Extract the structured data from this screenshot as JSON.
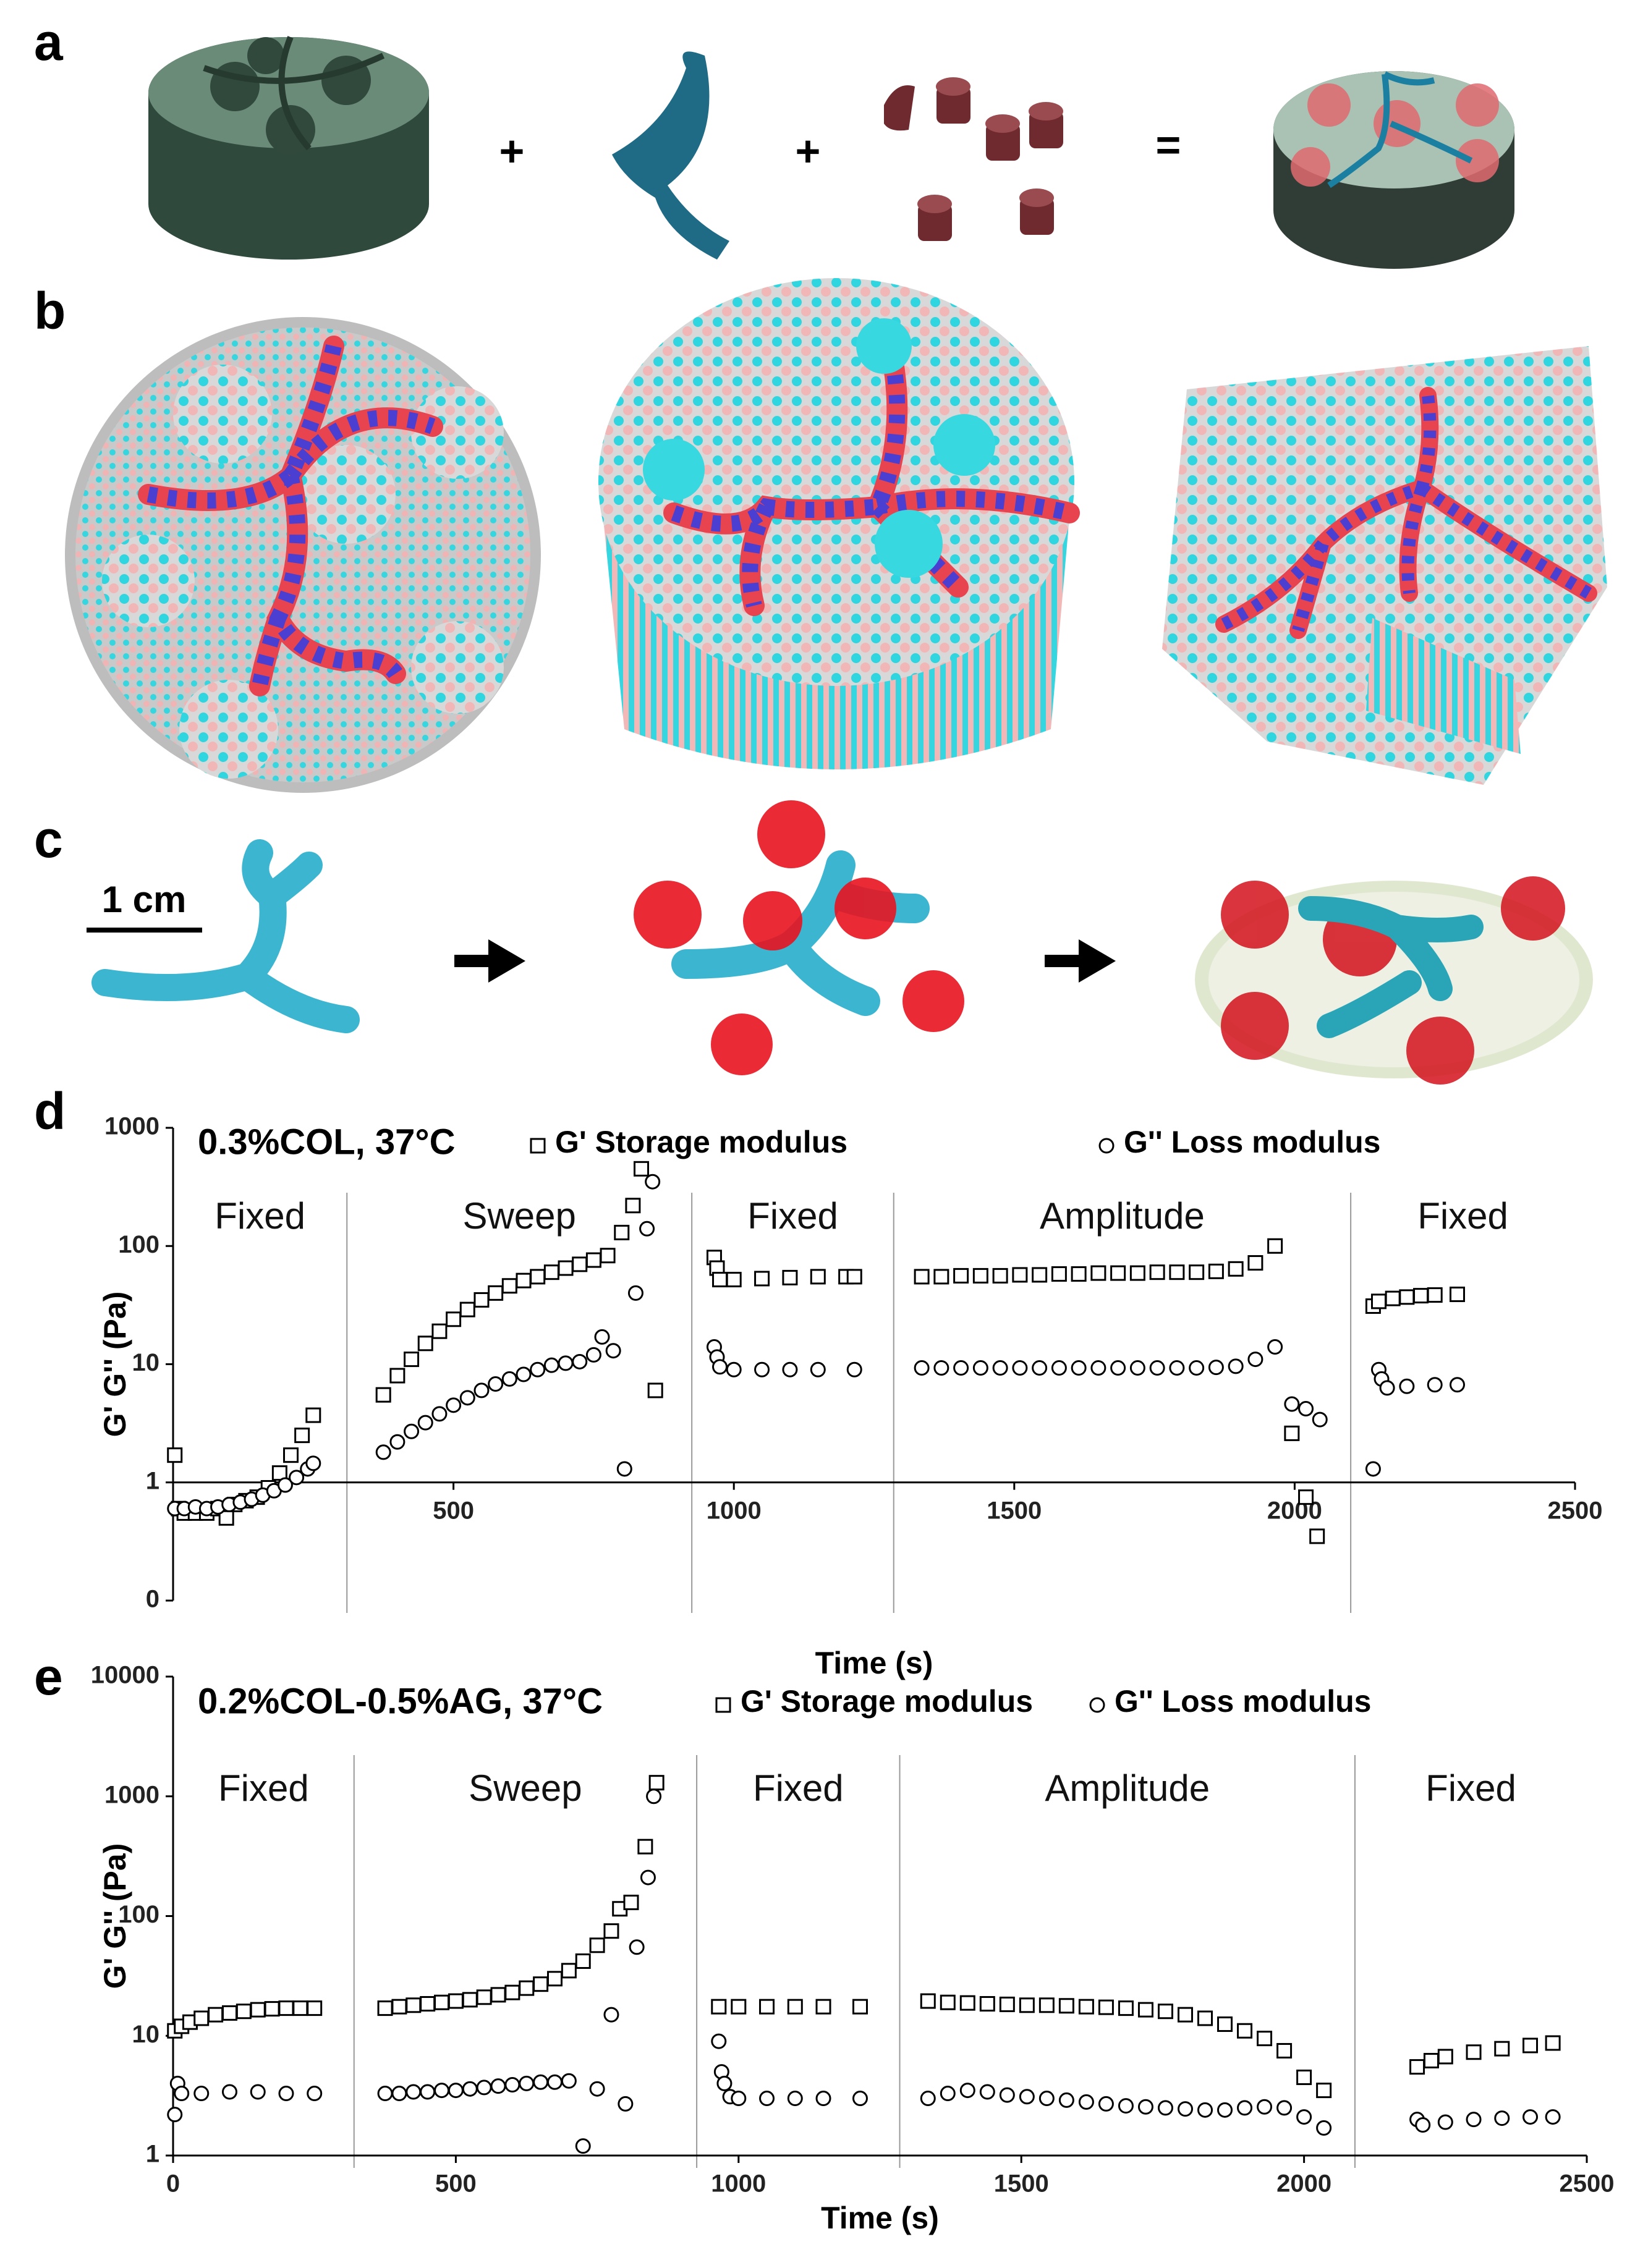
{
  "figure": {
    "panel_labels": [
      "a",
      "b",
      "c",
      "d",
      "e"
    ],
    "symbols": [
      "+",
      "+",
      "="
    ],
    "scale_bar": "1 cm"
  },
  "chart_data": [
    {
      "type": "scatter",
      "title": "0.3%COL, 37°C",
      "x_label": "Time (s)",
      "y_label": "G' G'' (Pa)",
      "log_y": true,
      "xlim": [
        0,
        2500
      ],
      "ylim": [
        0.1,
        1000
      ],
      "x_axis_crosses": 1,
      "xticks": [
        500,
        1000,
        1500,
        2000,
        2500
      ],
      "yticks": [
        {
          "value": 0.1,
          "label": "0"
        },
        1,
        10,
        100,
        1000
      ],
      "regions": [
        {
          "label": "Fixed",
          "x": [
            0,
            310
          ]
        },
        {
          "label": "Sweep",
          "x": [
            310,
            925
          ]
        },
        {
          "label": "Fixed",
          "x": [
            925,
            1285
          ]
        },
        {
          "label": "Amplitude",
          "x": [
            1285,
            2100
          ]
        },
        {
          "label": "Fixed",
          "x": [
            2100,
            2500
          ]
        }
      ],
      "series": [
        {
          "name": "G' Storage modulus",
          "marker": "square",
          "color": "#000000",
          "x": [
            3,
            10,
            20,
            40,
            60,
            80,
            95,
            110,
            130,
            150,
            170,
            190,
            210,
            230,
            250,
            375,
            400,
            425,
            450,
            475,
            500,
            525,
            550,
            575,
            600,
            625,
            650,
            675,
            700,
            725,
            750,
            775,
            800,
            820,
            835,
            860,
            965,
            970,
            975,
            1000,
            1050,
            1100,
            1150,
            1200,
            1215,
            1335,
            1370,
            1405,
            1440,
            1475,
            1510,
            1545,
            1580,
            1615,
            1650,
            1685,
            1720,
            1755,
            1790,
            1825,
            1860,
            1895,
            1930,
            1965,
            1995,
            2020,
            2040,
            2140,
            2150,
            2175,
            2200,
            2225,
            2250,
            2290
          ],
          "values": [
            1.7,
            0.6,
            0.55,
            0.55,
            0.55,
            0.6,
            0.5,
            0.65,
            0.7,
            0.75,
            0.9,
            1.2,
            1.7,
            2.5,
            3.7,
            5.5,
            8,
            11,
            15,
            19,
            24,
            29,
            35,
            40,
            46,
            51,
            55,
            60,
            65,
            70,
            76,
            83,
            130,
            220,
            450,
            6,
            80,
            65,
            52,
            52,
            53,
            54,
            55,
            55,
            55,
            55,
            55,
            56,
            56,
            56,
            57,
            57,
            58,
            58,
            59,
            59,
            59,
            60,
            60,
            60,
            61,
            64,
            72,
            100,
            2.6,
            0.75,
            0.35,
            31,
            34,
            36,
            37,
            38,
            38.5,
            39
          ]
        },
        {
          "name": "G'' Loss modulus",
          "marker": "circle",
          "color": "#000000",
          "x": [
            3,
            20,
            40,
            60,
            80,
            100,
            120,
            140,
            160,
            180,
            200,
            220,
            240,
            250,
            375,
            400,
            425,
            450,
            475,
            500,
            525,
            550,
            575,
            600,
            625,
            650,
            675,
            700,
            725,
            750,
            765,
            785,
            805,
            825,
            845,
            855,
            965,
            970,
            975,
            1000,
            1050,
            1100,
            1150,
            1215,
            1335,
            1370,
            1405,
            1440,
            1475,
            1510,
            1545,
            1580,
            1615,
            1650,
            1685,
            1720,
            1755,
            1790,
            1825,
            1860,
            1895,
            1930,
            1965,
            1995,
            2020,
            2045,
            2140,
            2150,
            2155,
            2165,
            2200,
            2250,
            2290
          ],
          "values": [
            0.6,
            0.6,
            0.62,
            0.6,
            0.62,
            0.65,
            0.68,
            0.72,
            0.78,
            0.85,
            0.95,
            1.1,
            1.3,
            1.45,
            1.8,
            2.2,
            2.7,
            3.2,
            3.8,
            4.5,
            5.2,
            6,
            6.8,
            7.5,
            8.2,
            9,
            9.8,
            10.2,
            10.5,
            12,
            17,
            13,
            1.3,
            40,
            140,
            350,
            14,
            11.5,
            9.5,
            9,
            9,
            9,
            9,
            9,
            9.3,
            9.3,
            9.3,
            9.3,
            9.3,
            9.3,
            9.3,
            9.3,
            9.3,
            9.3,
            9.3,
            9.3,
            9.3,
            9.3,
            9.3,
            9.4,
            9.6,
            11,
            14,
            4.6,
            4.2,
            3.4,
            1.3,
            9,
            7.5,
            6.3,
            6.5,
            6.7,
            6.7
          ]
        }
      ]
    },
    {
      "type": "scatter",
      "title": "0.2%COL-0.5%AG, 37°C",
      "x_label": "Time (s)",
      "y_label": "G' G'' (Pa)",
      "log_y": true,
      "xlim": [
        0,
        2500
      ],
      "ylim": [
        1,
        10000
      ],
      "x_axis_crosses": 1,
      "xticks": [
        0,
        500,
        1000,
        1500,
        2000,
        2500
      ],
      "yticks": [
        1,
        10,
        100,
        1000,
        10000
      ],
      "regions": [
        {
          "label": "Fixed",
          "x": [
            0,
            320
          ]
        },
        {
          "label": "Sweep",
          "x": [
            320,
            926
          ]
        },
        {
          "label": "Fixed",
          "x": [
            926,
            1285
          ]
        },
        {
          "label": "Amplitude",
          "x": [
            1285,
            2090
          ]
        },
        {
          "label": "Fixed",
          "x": [
            2090,
            2500
          ]
        }
      ],
      "series": [
        {
          "name": "G' Storage modulus",
          "marker": "square",
          "color": "#000000",
          "x": [
            3,
            15,
            30,
            50,
            75,
            100,
            125,
            150,
            175,
            200,
            225,
            250,
            375,
            400,
            425,
            450,
            475,
            500,
            525,
            550,
            575,
            600,
            625,
            650,
            675,
            700,
            725,
            750,
            775,
            790,
            810,
            835,
            855,
            965,
            1000,
            1050,
            1100,
            1150,
            1215,
            1335,
            1370,
            1405,
            1440,
            1475,
            1510,
            1545,
            1580,
            1615,
            1650,
            1685,
            1720,
            1755,
            1790,
            1825,
            1860,
            1895,
            1930,
            1965,
            2000,
            2035,
            2200,
            2225,
            2250,
            2300,
            2350,
            2400,
            2440
          ],
          "values": [
            11,
            12,
            13,
            14,
            15,
            15.5,
            16,
            16.5,
            16.8,
            17,
            17,
            17,
            17,
            17.5,
            18,
            18.5,
            19,
            19.5,
            20,
            21,
            22,
            23,
            25,
            27,
            30,
            35,
            42,
            57,
            75,
            115,
            130,
            380,
            1300,
            17.5,
            17.5,
            17.5,
            17.5,
            17.5,
            17.5,
            19.5,
            19,
            18.8,
            18.5,
            18.3,
            18,
            18,
            17.8,
            17.5,
            17.3,
            17,
            16.5,
            16,
            15,
            14,
            12.5,
            11,
            9.5,
            7.5,
            4.5,
            3.5,
            5.5,
            6.2,
            6.7,
            7.3,
            7.8,
            8.3,
            8.7
          ]
        },
        {
          "name": "G'' Loss modulus",
          "marker": "circle",
          "color": "#000000",
          "x": [
            3,
            8,
            15,
            50,
            100,
            150,
            200,
            250,
            375,
            400,
            425,
            450,
            475,
            500,
            525,
            550,
            575,
            600,
            625,
            650,
            675,
            700,
            725,
            750,
            775,
            800,
            820,
            840,
            850,
            965,
            970,
            975,
            985,
            1000,
            1050,
            1100,
            1150,
            1215,
            1335,
            1370,
            1405,
            1440,
            1475,
            1510,
            1545,
            1580,
            1615,
            1650,
            1685,
            1720,
            1755,
            1790,
            1825,
            1860,
            1895,
            1930,
            1965,
            2000,
            2035,
            2200,
            2210,
            2250,
            2300,
            2350,
            2400,
            2440
          ],
          "values": [
            2.2,
            4,
            3.3,
            3.3,
            3.4,
            3.4,
            3.3,
            3.3,
            3.3,
            3.3,
            3.4,
            3.4,
            3.5,
            3.5,
            3.6,
            3.7,
            3.8,
            3.9,
            4,
            4.1,
            4.1,
            4.2,
            1.2,
            3.6,
            15,
            2.7,
            55,
            210,
            1000,
            9,
            5,
            4,
            3.1,
            3,
            3,
            3,
            3,
            3,
            3,
            3.3,
            3.5,
            3.4,
            3.2,
            3.1,
            3,
            2.9,
            2.8,
            2.7,
            2.6,
            2.55,
            2.5,
            2.45,
            2.4,
            2.4,
            2.5,
            2.55,
            2.5,
            2.1,
            1.7,
            2,
            1.8,
            1.9,
            2,
            2.05,
            2.1,
            2.1
          ]
        }
      ]
    }
  ]
}
